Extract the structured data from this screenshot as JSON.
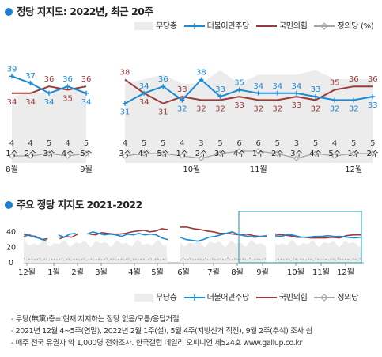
{
  "titles": {
    "chart1": "정당 지지도: 2022년, 최근 20주",
    "chart2": "주요 정당 지지도 2021-2022"
  },
  "legend": {
    "none": "무당층",
    "dpk": "더불어민주당",
    "ppp": "국민의힘",
    "jus": "정의당 (%)",
    "jus2": "정의당"
  },
  "colors": {
    "dpk": "#1b8bd6",
    "ppp": "#9a3b3b",
    "jus": "#a6a6a6",
    "none_area": "#ececec",
    "title_dot": "#1e7fd0",
    "highlight_box": "#3aa5b8"
  },
  "chart_data": [
    {
      "type": "line",
      "title": "정당 지지도: 2022년, 최근 20주",
      "x_week_labels": [
        "1주",
        "2주",
        "3주",
        "4주",
        "5주",
        "3주",
        "4주",
        "5주",
        "1주",
        "2주",
        "3주",
        "4주",
        "1주",
        "2주",
        "3주",
        "4주",
        "5주",
        "1주",
        "2주",
        "3주"
      ],
      "month_labels": [
        {
          "label": "8월",
          "at": 0
        },
        {
          "label": "9월",
          "at": 4
        },
        {
          "label": "10월",
          "at": 8.5
        },
        {
          "label": "11월",
          "at": 12
        },
        {
          "label": "12월",
          "at": 17
        }
      ],
      "gap_after_index": 4,
      "series": [
        {
          "name": "더불어민주당",
          "key": "dpk",
          "values": [
            39,
            37,
            34,
            36,
            34,
            31,
            34,
            36,
            32,
            38,
            33,
            35,
            34,
            34,
            34,
            33,
            32,
            32,
            33,
            null
          ]
        },
        {
          "name": "국민의힘",
          "key": "ppp",
          "values": [
            34,
            34,
            36,
            35,
            36,
            38,
            34,
            31,
            33,
            32,
            32,
            33,
            32,
            32,
            33,
            32,
            35,
            36,
            36,
            null
          ]
        },
        {
          "name": "정의당",
          "key": "jus",
          "values": [
            4,
            4,
            5,
            4,
            5,
            4,
            5,
            5,
            4,
            3,
            5,
            6,
            6,
            5,
            3,
            5,
            4,
            5,
            5,
            null
          ]
        }
      ],
      "no_party": [
        21,
        22,
        22,
        23,
        22,
        24,
        25,
        26,
        24,
        24,
        27,
        24,
        26,
        26,
        26,
        27,
        25,
        25,
        25,
        null
      ],
      "data_labels": {
        "dpk": [
          39,
          37,
          34,
          36,
          34,
          31,
          34,
          36,
          32,
          38,
          33,
          35,
          34,
          34,
          34,
          33,
          32,
          32,
          33
        ],
        "ppp": [
          34,
          34,
          36,
          35,
          36,
          38,
          34,
          31,
          33,
          32,
          32,
          33,
          32,
          32,
          33,
          32,
          35,
          36,
          36
        ],
        "jus": [
          4,
          4,
          5,
          4,
          5,
          4,
          5,
          5,
          4,
          3,
          5,
          6,
          6,
          5,
          3,
          5,
          4,
          5,
          5
        ]
      },
      "grid": false
    },
    {
      "type": "line",
      "title": "주요 정당 지지도 2021-2022",
      "y_ticks": [
        0,
        20,
        40
      ],
      "ylim": [
        0,
        48
      ],
      "x_month_labels": [
        "12월",
        "1월",
        "2월",
        "3월",
        "4월",
        "5월",
        "6월",
        "7월",
        "8월",
        "9월",
        "10월",
        "11월",
        "12월"
      ],
      "series": [
        {
          "name": "더불어민주당",
          "key": "dpk",
          "segments": [
            [
              34,
              36,
              33,
              31,
              28,
              null,
              36,
              33,
              37,
              38,
              null,
              37,
              40,
              38,
              36,
              37,
              36,
              34,
              37,
              36,
              38,
              36,
              37,
              36,
              32,
              30
            ],
            [
              33,
              30,
              29,
              28,
              30,
              33,
              34,
              36,
              38,
              40,
              37,
              35,
              34,
              33,
              34,
              35
            ],
            [
              35,
              34,
              37,
              35,
              33,
              33,
              34,
              34,
              35,
              34,
              34,
              33,
              32,
              33
            ]
          ]
        },
        {
          "name": "국민의힘",
          "key": "ppp",
          "segments": [
            [
              37,
              35,
              34,
              30,
              31,
              null,
              31,
              34,
              33,
              37,
              null,
              37,
              36,
              39,
              38,
              37,
              37,
              38,
              40,
              41,
              42,
              40,
              41,
              44,
              43
            ],
            [
              46,
              46,
              44,
              43,
              41,
              40,
              38,
              38,
              37,
              36,
              37,
              35,
              34,
              34
            ],
            [
              37,
              36,
              35,
              33,
              33,
              32,
              32,
              32,
              33,
              32,
              35,
              36,
              36
            ]
          ]
        },
        {
          "name": "정의당",
          "key": "jus",
          "values_range": [
            3,
            6
          ]
        }
      ],
      "no_party_range": [
        20,
        30
      ],
      "highlight_window": "최근 20주",
      "grid": false
    }
  ],
  "notes": [
    "- 무당(無黨)층='현재 지지하는 정당 없음/모름/응답거절'",
    "- 2021년 12월 4~5주(연말), 2022년 2월 1주(설), 5월 4주(지방선거 직전), 9월 2주(추석) 조사 쉼",
    "- 매주 전국 유권자 약 1,000명 전화조사. 한국갤럽 데일리 오피니언 제524호 www.gallup.co.kr"
  ]
}
